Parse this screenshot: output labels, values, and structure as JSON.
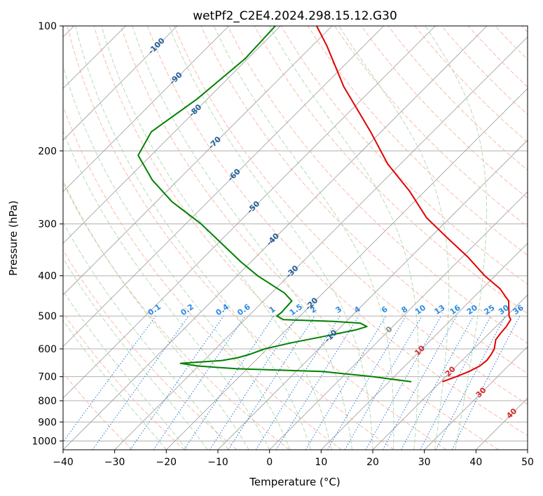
{
  "chart_data": {
    "type": "line",
    "subtype": "skew-t log-p diagram",
    "title": "wetPf2_C2E4.2024.298.15.12.G30",
    "xlabel": "Temperature (°C)",
    "ylabel": "Pressure (hPa)",
    "xlim": [
      -40,
      50
    ],
    "ylim": [
      1050,
      100
    ],
    "y_scale": "log",
    "x_ticks": [
      "−40",
      "−30",
      "−20",
      "−10",
      "0",
      "10",
      "20",
      "30",
      "40",
      "50"
    ],
    "y_ticks": [
      "100",
      "200",
      "300",
      "400",
      "500",
      "600",
      "700",
      "800",
      "900",
      "1000"
    ],
    "grid": true,
    "background_lines": {
      "skewed_isotherms": "gray solid",
      "dry_adiabats": "tan/salmon dashed",
      "moist_adiabats": "green dashed",
      "mixing_ratio_lines": "blue dotted"
    },
    "isotherm_labels_upper": [
      "-100",
      "-90",
      "-80",
      "-70",
      "-60",
      "-50",
      "-40",
      "-30",
      "-20",
      "-10"
    ],
    "isotherm_labels_lower": [
      "0",
      "10",
      "20",
      "30",
      "40"
    ],
    "mixing_ratio_labels": [
      "0.1",
      "0.2",
      "0.4",
      "0.6",
      "1",
      "1.5",
      "2",
      "3",
      "4",
      "6",
      "8",
      "10",
      "13",
      "16",
      "20",
      "25",
      "30",
      "36"
    ],
    "series": [
      {
        "color": "#e00000",
        "x_temperature_c": [
          20.3,
          22.0,
          23.5,
          24.5,
          24.8,
          24.5,
          24.0,
          22.5,
          22.2,
          22.0,
          21.5,
          20.5,
          17.5,
          13.5,
          8.0,
          1.0,
          -7.5,
          -14.5,
          -23.0,
          -32.5,
          -42.0,
          -56.0,
          -67.0,
          -73.0
        ],
        "y_pressure_hpa": [
          720,
          700,
          680,
          660,
          640,
          620,
          600,
          570,
          550,
          530,
          510,
          500,
          460,
          430,
          400,
          360,
          320,
          290,
          250,
          215,
          180,
          140,
          112,
          100
        ]
      },
      {
        "color": "#008000",
        "x_temperature_c": [
          14.3,
          10.0,
          6.0,
          -5.0,
          -22.0,
          -30.0,
          -34.0,
          -26.5,
          -24.0,
          -22.5,
          -21.5,
          -20.5,
          -16.5,
          -11.5,
          -6.5,
          -5.0,
          -7.0,
          -12.5,
          -22.5,
          -24.5,
          -24.3,
          -24.5,
          -27.5,
          -36.0,
          -42.0,
          -47.0,
          -57.0,
          -67.0,
          -75.0,
          -82.5,
          -84.5,
          -82.0,
          -80.5,
          -81.0
        ],
        "y_pressure_hpa": [
          720,
          710,
          700,
          680,
          670,
          660,
          650,
          640,
          630,
          620,
          610,
          600,
          580,
          560,
          540,
          530,
          520,
          515,
          510,
          500,
          490,
          460,
          440,
          400,
          370,
          345,
          300,
          265,
          235,
          205,
          180,
          150,
          120,
          100
        ]
      }
    ]
  }
}
